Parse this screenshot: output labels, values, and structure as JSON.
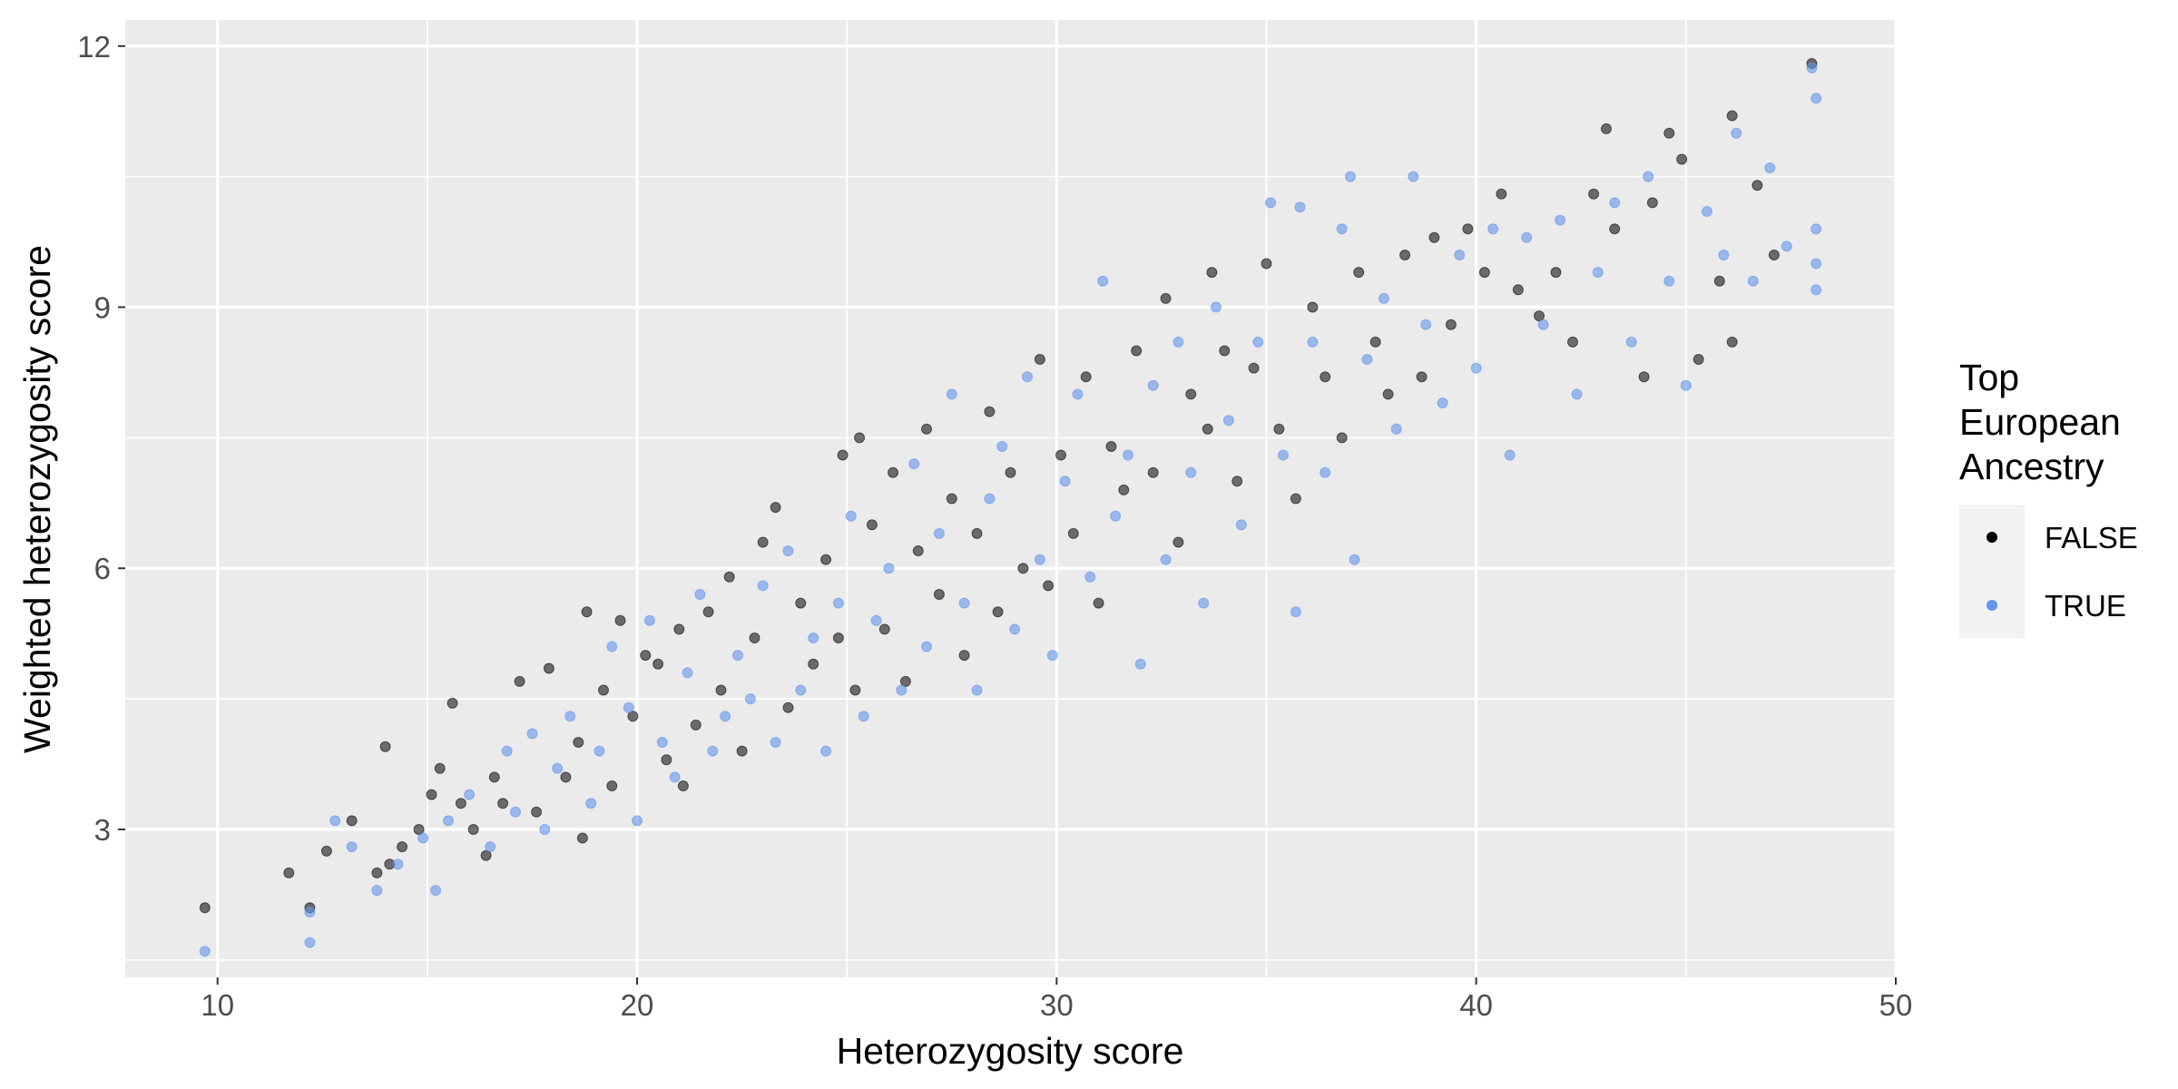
{
  "chart_data": {
    "type": "scatter",
    "title": "",
    "xlabel": "Heterozygosity score",
    "ylabel": "Weighted heterozygosity score",
    "xlim": [
      7.8,
      50
    ],
    "ylim": [
      1.3,
      12.3
    ],
    "x_ticks": [
      10,
      20,
      30,
      40,
      50
    ],
    "y_ticks": [
      3,
      6,
      9,
      12
    ],
    "grid": true,
    "legend": {
      "title_lines": [
        "Top",
        "European",
        "Ancestry"
      ],
      "placement": "right"
    },
    "series": [
      {
        "name": "FALSE",
        "color": "#000000",
        "points": [
          [
            9.7,
            2.1
          ],
          [
            11.7,
            2.5
          ],
          [
            12.2,
            2.1
          ],
          [
            12.6,
            2.75
          ],
          [
            13.2,
            3.1
          ],
          [
            13.8,
            2.5
          ],
          [
            14.0,
            3.95
          ],
          [
            14.1,
            2.6
          ],
          [
            14.4,
            2.8
          ],
          [
            14.8,
            3.0
          ],
          [
            15.1,
            3.4
          ],
          [
            15.3,
            3.7
          ],
          [
            15.6,
            4.45
          ],
          [
            15.8,
            3.3
          ],
          [
            16.1,
            3.0
          ],
          [
            16.4,
            2.7
          ],
          [
            16.6,
            3.6
          ],
          [
            16.8,
            3.3
          ],
          [
            17.2,
            4.7
          ],
          [
            17.6,
            3.2
          ],
          [
            17.9,
            4.85
          ],
          [
            18.3,
            3.6
          ],
          [
            18.6,
            4.0
          ],
          [
            18.7,
            2.9
          ],
          [
            18.8,
            5.5
          ],
          [
            19.2,
            4.6
          ],
          [
            19.4,
            3.5
          ],
          [
            19.6,
            5.4
          ],
          [
            19.9,
            4.3
          ],
          [
            20.2,
            5.0
          ],
          [
            20.5,
            4.9
          ],
          [
            20.7,
            3.8
          ],
          [
            21.0,
            5.3
          ],
          [
            21.1,
            3.5
          ],
          [
            21.4,
            4.2
          ],
          [
            21.7,
            5.5
          ],
          [
            22.0,
            4.6
          ],
          [
            22.2,
            5.9
          ],
          [
            22.5,
            3.9
          ],
          [
            22.8,
            5.2
          ],
          [
            23.0,
            6.3
          ],
          [
            23.3,
            6.7
          ],
          [
            23.6,
            4.4
          ],
          [
            23.9,
            5.6
          ],
          [
            24.2,
            4.9
          ],
          [
            24.5,
            6.1
          ],
          [
            24.8,
            5.2
          ],
          [
            24.9,
            7.3
          ],
          [
            25.2,
            4.6
          ],
          [
            25.3,
            7.5
          ],
          [
            25.6,
            6.5
          ],
          [
            25.9,
            5.3
          ],
          [
            26.1,
            7.1
          ],
          [
            26.4,
            4.7
          ],
          [
            26.7,
            6.2
          ],
          [
            26.9,
            7.6
          ],
          [
            27.2,
            5.7
          ],
          [
            27.5,
            6.8
          ],
          [
            27.8,
            5.0
          ],
          [
            28.1,
            6.4
          ],
          [
            28.4,
            7.8
          ],
          [
            28.6,
            5.5
          ],
          [
            28.9,
            7.1
          ],
          [
            29.2,
            6.0
          ],
          [
            29.6,
            8.4
          ],
          [
            29.8,
            5.8
          ],
          [
            30.1,
            7.3
          ],
          [
            30.4,
            6.4
          ],
          [
            30.7,
            8.2
          ],
          [
            31.0,
            5.6
          ],
          [
            31.3,
            7.4
          ],
          [
            31.6,
            6.9
          ],
          [
            31.9,
            8.5
          ],
          [
            32.3,
            7.1
          ],
          [
            32.6,
            9.1
          ],
          [
            32.9,
            6.3
          ],
          [
            33.2,
            8.0
          ],
          [
            33.6,
            7.6
          ],
          [
            33.7,
            9.4
          ],
          [
            34.0,
            8.5
          ],
          [
            34.3,
            7.0
          ],
          [
            34.7,
            8.3
          ],
          [
            35.0,
            9.5
          ],
          [
            35.3,
            7.6
          ],
          [
            35.7,
            6.8
          ],
          [
            36.1,
            9.0
          ],
          [
            36.4,
            8.2
          ],
          [
            36.8,
            7.5
          ],
          [
            37.2,
            9.4
          ],
          [
            37.6,
            8.6
          ],
          [
            37.9,
            8.0
          ],
          [
            38.3,
            9.6
          ],
          [
            38.7,
            8.2
          ],
          [
            39.0,
            9.8
          ],
          [
            39.4,
            8.8
          ],
          [
            39.8,
            9.9
          ],
          [
            40.2,
            9.4
          ],
          [
            40.6,
            10.3
          ],
          [
            41.0,
            9.2
          ],
          [
            41.5,
            8.9
          ],
          [
            41.9,
            9.4
          ],
          [
            42.3,
            8.6
          ],
          [
            42.8,
            10.3
          ],
          [
            43.1,
            11.05
          ],
          [
            43.3,
            9.9
          ],
          [
            44.0,
            8.2
          ],
          [
            44.2,
            10.2
          ],
          [
            44.6,
            11.0
          ],
          [
            44.9,
            10.7
          ],
          [
            45.3,
            8.4
          ],
          [
            45.8,
            9.3
          ],
          [
            46.1,
            11.2
          ],
          [
            46.1,
            8.6
          ],
          [
            46.7,
            10.4
          ],
          [
            47.1,
            9.6
          ],
          [
            48.0,
            11.8
          ]
        ]
      },
      {
        "name": "TRUE",
        "color": "#6495ed",
        "points": [
          [
            9.7,
            1.6
          ],
          [
            12.2,
            1.7
          ],
          [
            12.2,
            2.05
          ],
          [
            12.8,
            3.1
          ],
          [
            13.2,
            2.8
          ],
          [
            13.8,
            2.3
          ],
          [
            14.3,
            2.6
          ],
          [
            14.9,
            2.9
          ],
          [
            15.2,
            2.3
          ],
          [
            15.5,
            3.1
          ],
          [
            16.0,
            3.4
          ],
          [
            16.5,
            2.8
          ],
          [
            16.9,
            3.9
          ],
          [
            17.1,
            3.2
          ],
          [
            17.5,
            4.1
          ],
          [
            17.8,
            3.0
          ],
          [
            18.1,
            3.7
          ],
          [
            18.4,
            4.3
          ],
          [
            18.9,
            3.3
          ],
          [
            19.1,
            3.9
          ],
          [
            19.4,
            5.1
          ],
          [
            19.8,
            4.4
          ],
          [
            20.0,
            3.1
          ],
          [
            20.3,
            5.4
          ],
          [
            20.6,
            4.0
          ],
          [
            20.9,
            3.6
          ],
          [
            21.2,
            4.8
          ],
          [
            21.5,
            5.7
          ],
          [
            21.8,
            3.9
          ],
          [
            22.1,
            4.3
          ],
          [
            22.4,
            5.0
          ],
          [
            22.7,
            4.5
          ],
          [
            23.0,
            5.8
          ],
          [
            23.3,
            4.0
          ],
          [
            23.6,
            6.2
          ],
          [
            23.9,
            4.6
          ],
          [
            24.2,
            5.2
          ],
          [
            24.5,
            3.9
          ],
          [
            24.8,
            5.6
          ],
          [
            25.1,
            6.6
          ],
          [
            25.4,
            4.3
          ],
          [
            25.7,
            5.4
          ],
          [
            26.0,
            6.0
          ],
          [
            26.3,
            4.6
          ],
          [
            26.6,
            7.2
          ],
          [
            26.9,
            5.1
          ],
          [
            27.2,
            6.4
          ],
          [
            27.5,
            8.0
          ],
          [
            27.8,
            5.6
          ],
          [
            28.1,
            4.6
          ],
          [
            28.4,
            6.8
          ],
          [
            28.7,
            7.4
          ],
          [
            29.0,
            5.3
          ],
          [
            29.3,
            8.2
          ],
          [
            29.6,
            6.1
          ],
          [
            29.9,
            5.0
          ],
          [
            30.2,
            7.0
          ],
          [
            30.5,
            8.0
          ],
          [
            30.8,
            5.9
          ],
          [
            31.1,
            9.3
          ],
          [
            31.4,
            6.6
          ],
          [
            31.7,
            7.3
          ],
          [
            32.0,
            4.9
          ],
          [
            32.3,
            8.1
          ],
          [
            32.6,
            6.1
          ],
          [
            32.9,
            8.6
          ],
          [
            33.2,
            7.1
          ],
          [
            33.5,
            5.6
          ],
          [
            33.8,
            9.0
          ],
          [
            34.1,
            7.7
          ],
          [
            34.4,
            6.5
          ],
          [
            34.8,
            8.6
          ],
          [
            35.1,
            10.2
          ],
          [
            35.4,
            7.3
          ],
          [
            35.7,
            5.5
          ],
          [
            35.8,
            10.15
          ],
          [
            36.1,
            8.6
          ],
          [
            36.4,
            7.1
          ],
          [
            36.8,
            9.9
          ],
          [
            37.0,
            10.5
          ],
          [
            37.1,
            6.1
          ],
          [
            37.4,
            8.4
          ],
          [
            37.8,
            9.1
          ],
          [
            38.1,
            7.6
          ],
          [
            38.5,
            10.5
          ],
          [
            38.8,
            8.8
          ],
          [
            39.2,
            7.9
          ],
          [
            39.6,
            9.6
          ],
          [
            40.0,
            8.3
          ],
          [
            40.4,
            9.9
          ],
          [
            40.8,
            7.3
          ],
          [
            41.2,
            9.8
          ],
          [
            41.6,
            8.8
          ],
          [
            42.0,
            10.0
          ],
          [
            42.4,
            8.0
          ],
          [
            42.9,
            9.4
          ],
          [
            43.3,
            10.2
          ],
          [
            43.7,
            8.6
          ],
          [
            44.1,
            10.5
          ],
          [
            44.6,
            9.3
          ],
          [
            45.0,
            8.1
          ],
          [
            45.5,
            10.1
          ],
          [
            45.9,
            9.6
          ],
          [
            46.2,
            11.0
          ],
          [
            46.6,
            9.3
          ],
          [
            47.0,
            10.6
          ],
          [
            47.4,
            9.7
          ],
          [
            48.0,
            11.75
          ],
          [
            48.1,
            11.4
          ],
          [
            48.1,
            9.9
          ],
          [
            48.1,
            9.5
          ],
          [
            48.1,
            9.2
          ]
        ]
      }
    ]
  }
}
